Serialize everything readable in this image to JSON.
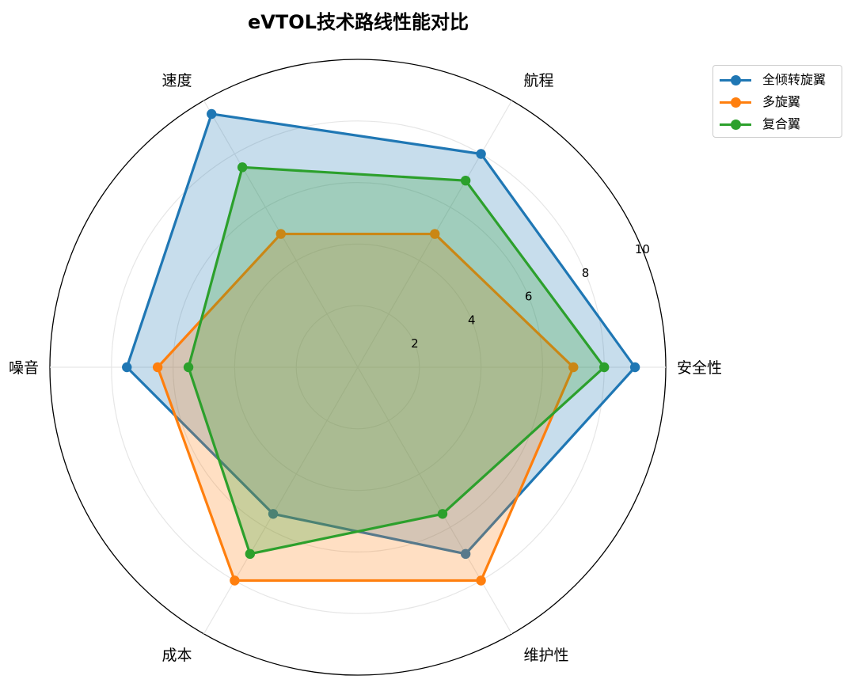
{
  "chart_data": {
    "type": "radar",
    "title": "eVTOL技术路线性能对比",
    "axes": [
      "安全性",
      "航程",
      "速度",
      "噪音",
      "成本",
      "维护性"
    ],
    "rlim": [
      0,
      10
    ],
    "rticks": [
      2,
      4,
      6,
      8,
      10
    ],
    "rtick_labels": [
      "2",
      "4",
      "6",
      "8",
      "10"
    ],
    "grid": true,
    "legend_position": "top-right",
    "series": [
      {
        "name": "全倾转旋翼",
        "color": "#1f77b4",
        "values": [
          9.0,
          8.0,
          9.5,
          7.5,
          5.5,
          7.0
        ]
      },
      {
        "name": "多旋翼",
        "color": "#ff7f0e",
        "values": [
          7.0,
          5.0,
          5.0,
          6.5,
          8.0,
          8.0
        ]
      },
      {
        "name": "复合翼",
        "color": "#2ca02c",
        "values": [
          8.0,
          7.0,
          7.5,
          5.5,
          7.0,
          5.5
        ]
      }
    ]
  }
}
